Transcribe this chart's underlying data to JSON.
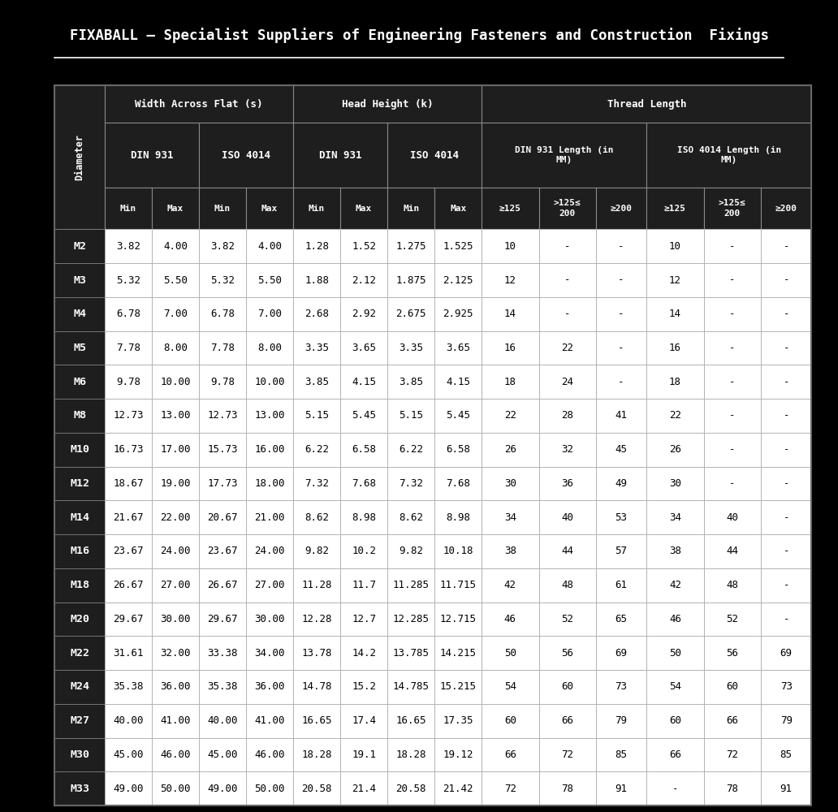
{
  "title": "FIXABALL – Specialist Suppliers of Engineering Fasteners and Construction  Fixings",
  "background_color": "#000000",
  "header_bg": "#1e1e1e",
  "white_bg": "#ffffff",
  "header_text_color": "#ffffff",
  "cell_text_color": "#000000",
  "title_color": "#ffffff",
  "col_headers_level3": [
    "Min",
    "Max",
    "Min",
    "Max",
    "Min",
    "Max",
    "Min",
    "Max",
    "≥125",
    ">125≤\n200",
    "≥200",
    "≥125",
    ">125≤\n200",
    "≥200"
  ],
  "row_label": "Diameter",
  "rows": [
    [
      "M2",
      "3.82",
      "4.00",
      "3.82",
      "4.00",
      "1.28",
      "1.52",
      "1.275",
      "1.525",
      "10",
      "-",
      "-",
      "10",
      "-",
      "-"
    ],
    [
      "M3",
      "5.32",
      "5.50",
      "5.32",
      "5.50",
      "1.88",
      "2.12",
      "1.875",
      "2.125",
      "12",
      "-",
      "-",
      "12",
      "-",
      "-"
    ],
    [
      "M4",
      "6.78",
      "7.00",
      "6.78",
      "7.00",
      "2.68",
      "2.92",
      "2.675",
      "2.925",
      "14",
      "-",
      "-",
      "14",
      "-",
      "-"
    ],
    [
      "M5",
      "7.78",
      "8.00",
      "7.78",
      "8.00",
      "3.35",
      "3.65",
      "3.35",
      "3.65",
      "16",
      "22",
      "-",
      "16",
      "-",
      "-"
    ],
    [
      "M6",
      "9.78",
      "10.00",
      "9.78",
      "10.00",
      "3.85",
      "4.15",
      "3.85",
      "4.15",
      "18",
      "24",
      "-",
      "18",
      "-",
      "-"
    ],
    [
      "M8",
      "12.73",
      "13.00",
      "12.73",
      "13.00",
      "5.15",
      "5.45",
      "5.15",
      "5.45",
      "22",
      "28",
      "41",
      "22",
      "-",
      "-"
    ],
    [
      "M10",
      "16.73",
      "17.00",
      "15.73",
      "16.00",
      "6.22",
      "6.58",
      "6.22",
      "6.58",
      "26",
      "32",
      "45",
      "26",
      "-",
      "-"
    ],
    [
      "M12",
      "18.67",
      "19.00",
      "17.73",
      "18.00",
      "7.32",
      "7.68",
      "7.32",
      "7.68",
      "30",
      "36",
      "49",
      "30",
      "-",
      "-"
    ],
    [
      "M14",
      "21.67",
      "22.00",
      "20.67",
      "21.00",
      "8.62",
      "8.98",
      "8.62",
      "8.98",
      "34",
      "40",
      "53",
      "34",
      "40",
      "-"
    ],
    [
      "M16",
      "23.67",
      "24.00",
      "23.67",
      "24.00",
      "9.82",
      "10.2",
      "9.82",
      "10.18",
      "38",
      "44",
      "57",
      "38",
      "44",
      "-"
    ],
    [
      "M18",
      "26.67",
      "27.00",
      "26.67",
      "27.00",
      "11.28",
      "11.7",
      "11.285",
      "11.715",
      "42",
      "48",
      "61",
      "42",
      "48",
      "-"
    ],
    [
      "M20",
      "29.67",
      "30.00",
      "29.67",
      "30.00",
      "12.28",
      "12.7",
      "12.285",
      "12.715",
      "46",
      "52",
      "65",
      "46",
      "52",
      "-"
    ],
    [
      "M22",
      "31.61",
      "32.00",
      "33.38",
      "34.00",
      "13.78",
      "14.2",
      "13.785",
      "14.215",
      "50",
      "56",
      "69",
      "50",
      "56",
      "69"
    ],
    [
      "M24",
      "35.38",
      "36.00",
      "35.38",
      "36.00",
      "14.78",
      "15.2",
      "14.785",
      "15.215",
      "54",
      "60",
      "73",
      "54",
      "60",
      "73"
    ],
    [
      "M27",
      "40.00",
      "41.00",
      "40.00",
      "41.00",
      "16.65",
      "17.4",
      "16.65",
      "17.35",
      "60",
      "66",
      "79",
      "60",
      "66",
      "79"
    ],
    [
      "M30",
      "45.00",
      "46.00",
      "45.00",
      "46.00",
      "18.28",
      "19.1",
      "18.28",
      "19.12",
      "66",
      "72",
      "85",
      "66",
      "72",
      "85"
    ],
    [
      "M33",
      "49.00",
      "50.00",
      "49.00",
      "50.00",
      "20.58",
      "21.4",
      "20.58",
      "21.42",
      "72",
      "78",
      "91",
      "-",
      "78",
      "91"
    ]
  ]
}
